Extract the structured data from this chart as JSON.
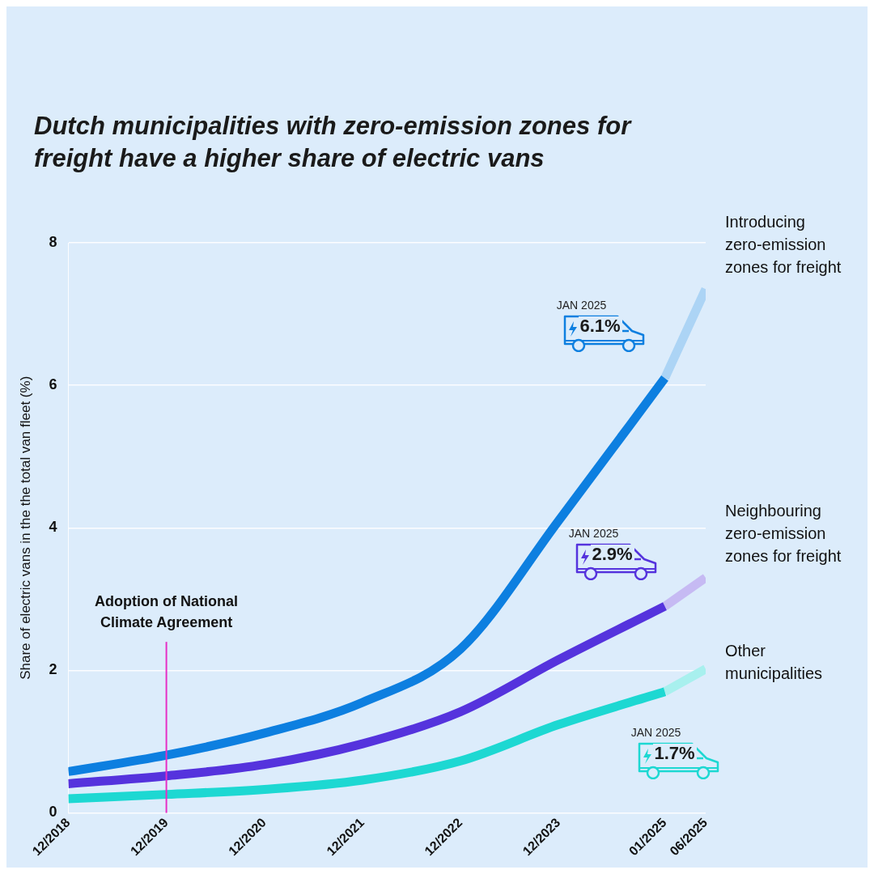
{
  "chart_data": {
    "type": "line",
    "title": "Dutch municipalities with zero-emission zones for freight have a higher share of electric vans",
    "ylabel": "Share of electric vans in the the total van fleet (%)",
    "x": [
      "2018-12",
      "2019-12",
      "2020-12",
      "2021-12",
      "2022-12",
      "2023-12",
      "2025-01"
    ],
    "xlim": [
      "2018-12",
      "2025-06"
    ],
    "xticks": [
      {
        "value": "2018-12",
        "label": "12/2018"
      },
      {
        "value": "2019-12",
        "label": "12/2019"
      },
      {
        "value": "2020-12",
        "label": "12/2020"
      },
      {
        "value": "2021-12",
        "label": "12/2021"
      },
      {
        "value": "2022-12",
        "label": "12/2022"
      },
      {
        "value": "2023-12",
        "label": "12/2023"
      },
      {
        "value": "2025-01",
        "label": "01/2025"
      },
      {
        "value": "2025-06",
        "label": "06/2025"
      }
    ],
    "ylim": [
      0,
      8
    ],
    "yticks": [
      0,
      2,
      4,
      6,
      8
    ],
    "grid": "y",
    "legend": false,
    "series": [
      {
        "name": "Introducing zero-emission zones for freight",
        "color": "#0d7fe0",
        "values": [
          0.58,
          0.81,
          1.12,
          1.55,
          2.3,
          4.1,
          6.1
        ]
      },
      {
        "color": "#acd4f5",
        "x": [
          "2025-01",
          "2025-06"
        ],
        "values": [
          6.1,
          7.35
        ]
      },
      {
        "name": "Neighbouring zero-emission zones for freight",
        "color": "#5533dd",
        "values": [
          0.41,
          0.52,
          0.68,
          0.97,
          1.42,
          2.15,
          2.9
        ]
      },
      {
        "color": "#c6baf3",
        "x": [
          "2025-01",
          "2025-06"
        ],
        "values": [
          2.9,
          3.3
        ]
      },
      {
        "name": "Other municipalities",
        "color": "#1dd8d2",
        "values": [
          0.2,
          0.26,
          0.33,
          0.46,
          0.73,
          1.24,
          1.7
        ]
      },
      {
        "color": "#a8f0ee",
        "x": [
          "2025-01",
          "2025-06"
        ],
        "values": [
          1.7,
          2.02
        ]
      }
    ],
    "ref_lines": [
      {
        "axis": "x",
        "value": "2019-12",
        "label": "Adoption of National Climate Agreement",
        "color": "#e62ec5"
      }
    ],
    "annotations": [
      "JAN 2025",
      "6.1%",
      "JAN 2025",
      "2.9%",
      "JAN 2025",
      "1.7%"
    ]
  }
}
